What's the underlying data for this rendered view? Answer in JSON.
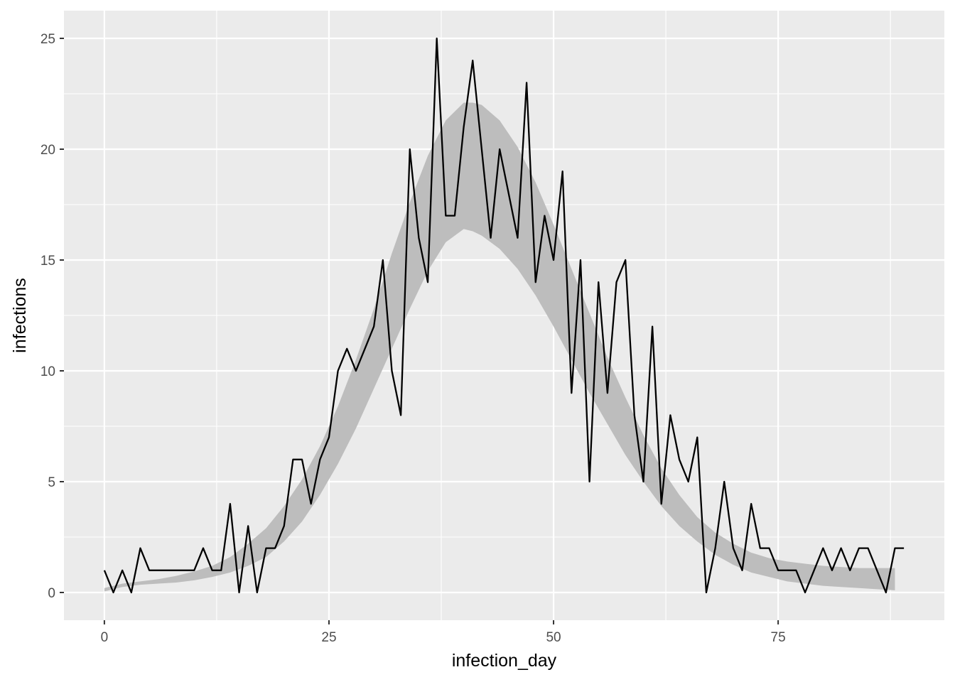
{
  "chart_data": {
    "type": "line",
    "title": "",
    "xlabel": "infection_day",
    "ylabel": "infections",
    "xlim": [
      -4.5,
      93.5
    ],
    "ylim": [
      -1.25,
      26.25
    ],
    "x_ticks": [
      0,
      25,
      50,
      75
    ],
    "x_tick_labels": [
      "0",
      "25",
      "50",
      "75"
    ],
    "y_ticks": [
      0,
      5,
      10,
      15,
      20,
      25
    ],
    "y_tick_labels": [
      "0",
      "5",
      "10",
      "15",
      "20",
      "25"
    ],
    "grid": true,
    "legend": "none",
    "colors": {
      "panel": "#ebebeb",
      "grid": "#ffffff",
      "line": "#000000",
      "ribbon": "#bdbdbd",
      "tick_text": "#4d4d4d",
      "tick_mark": "#333333"
    },
    "series": [
      {
        "type": "line",
        "x": [
          0,
          1,
          2,
          3,
          4,
          5,
          6,
          7,
          8,
          9,
          10,
          11,
          12,
          13,
          14,
          15,
          16,
          17,
          18,
          19,
          20,
          21,
          22,
          23,
          24,
          25,
          26,
          27,
          28,
          29,
          30,
          31,
          32,
          33,
          34,
          35,
          36,
          37,
          38,
          39,
          40,
          41,
          42,
          43,
          44,
          45,
          46,
          47,
          48,
          49,
          50,
          51,
          52,
          53,
          54,
          55,
          56,
          57,
          58,
          59,
          60,
          61,
          62,
          63,
          64,
          65,
          66,
          67,
          68,
          69,
          70,
          71,
          72,
          73,
          74,
          75,
          76,
          77,
          78,
          79,
          80,
          81,
          82,
          83,
          84,
          85,
          86,
          87,
          88,
          89
        ],
        "y": [
          1,
          0,
          1,
          0,
          2,
          1,
          1,
          1,
          1,
          1,
          1,
          2,
          1,
          1,
          4,
          0,
          3,
          0,
          2,
          2,
          3,
          6,
          6,
          4,
          6,
          7,
          10,
          11,
          10,
          11,
          12,
          15,
          10,
          8,
          20,
          16,
          14,
          25,
          17,
          17,
          21,
          24,
          20,
          16,
          20,
          18,
          16,
          23,
          14,
          17,
          15,
          19,
          9,
          15,
          5,
          14,
          9,
          14,
          15,
          8,
          5,
          12,
          4,
          8,
          6,
          5,
          7,
          0,
          2,
          5,
          2,
          1,
          4,
          2,
          2,
          1,
          1,
          1,
          0,
          1,
          2,
          1,
          2,
          1,
          2,
          2,
          1,
          0,
          2,
          2
        ]
      },
      {
        "type": "ribbon",
        "x": [
          0,
          2,
          4,
          6,
          8,
          10,
          12,
          14,
          16,
          18,
          20,
          22,
          24,
          26,
          28,
          30,
          32,
          34,
          36,
          38,
          40,
          41,
          42,
          44,
          46,
          48,
          50,
          52,
          54,
          56,
          58,
          60,
          62,
          64,
          66,
          68,
          70,
          72,
          74,
          76,
          78,
          80,
          82,
          84,
          86,
          88
        ],
        "lower": [
          0.05,
          0.25,
          0.35,
          0.4,
          0.45,
          0.55,
          0.7,
          0.9,
          1.2,
          1.6,
          2.3,
          3.2,
          4.4,
          5.8,
          7.4,
          9.2,
          11.0,
          12.8,
          14.5,
          15.8,
          16.4,
          16.3,
          16.1,
          15.5,
          14.6,
          13.4,
          12.0,
          10.5,
          9.0,
          7.6,
          6.2,
          5.0,
          3.9,
          3.0,
          2.3,
          1.7,
          1.25,
          0.9,
          0.7,
          0.5,
          0.4,
          0.3,
          0.25,
          0.2,
          0.15,
          0.1
        ],
        "upper": [
          0.2,
          0.4,
          0.5,
          0.6,
          0.75,
          0.95,
          1.2,
          1.6,
          2.2,
          2.9,
          3.9,
          5.1,
          6.6,
          8.4,
          10.5,
          12.8,
          15.3,
          17.6,
          19.7,
          21.3,
          22.1,
          22.1,
          22.0,
          21.3,
          20.1,
          18.5,
          16.6,
          14.6,
          12.6,
          10.6,
          8.8,
          7.1,
          5.6,
          4.4,
          3.4,
          2.7,
          2.2,
          1.8,
          1.55,
          1.4,
          1.3,
          1.2,
          1.15,
          1.1,
          1.1,
          1.1
        ]
      }
    ]
  }
}
